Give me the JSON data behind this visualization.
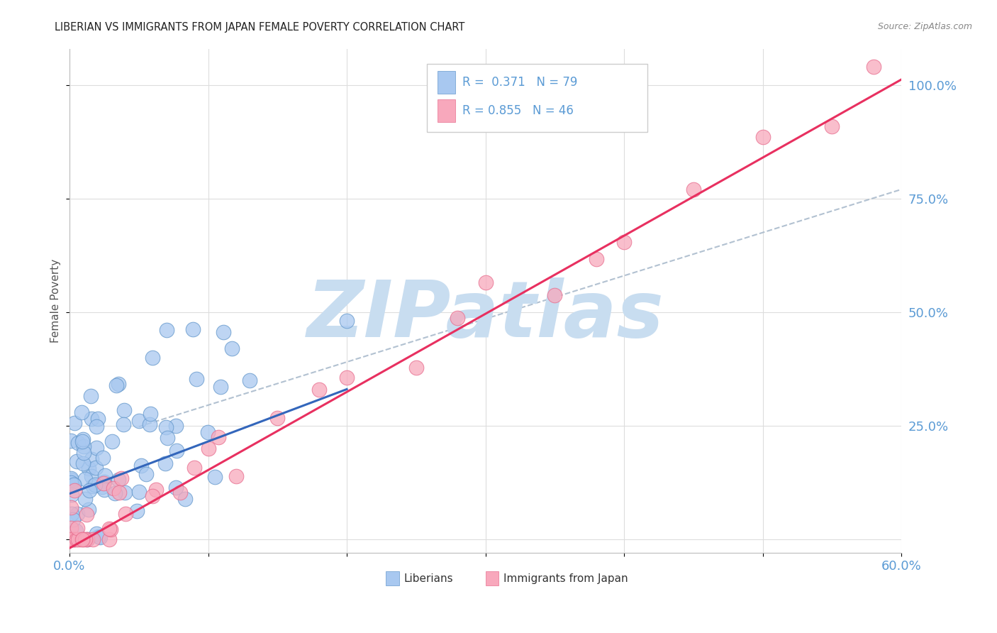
{
  "title": "LIBERIAN VS IMMIGRANTS FROM JAPAN FEMALE POVERTY CORRELATION CHART",
  "source": "Source: ZipAtlas.com",
  "ylabel": "Female Poverty",
  "yticks": [
    0.0,
    0.25,
    0.5,
    0.75,
    1.0
  ],
  "ytick_labels": [
    "",
    "25.0%",
    "50.0%",
    "75.0%",
    "100.0%"
  ],
  "xlim": [
    0.0,
    0.6
  ],
  "ylim": [
    -0.03,
    1.08
  ],
  "legend_R1": "R =  0.371",
  "legend_N1": "N = 79",
  "legend_R2": "R = 0.855",
  "legend_N2": "N = 46",
  "color_blue": "#A8C8F0",
  "color_blue_dark": "#6699CC",
  "color_blue_line": "#3366BB",
  "color_pink": "#F8A8BC",
  "color_pink_dark": "#E87090",
  "color_pink_line": "#E83060",
  "color_axis": "#5B9BD5",
  "watermark": "ZIPatlas",
  "watermark_color": "#C8DDF0"
}
